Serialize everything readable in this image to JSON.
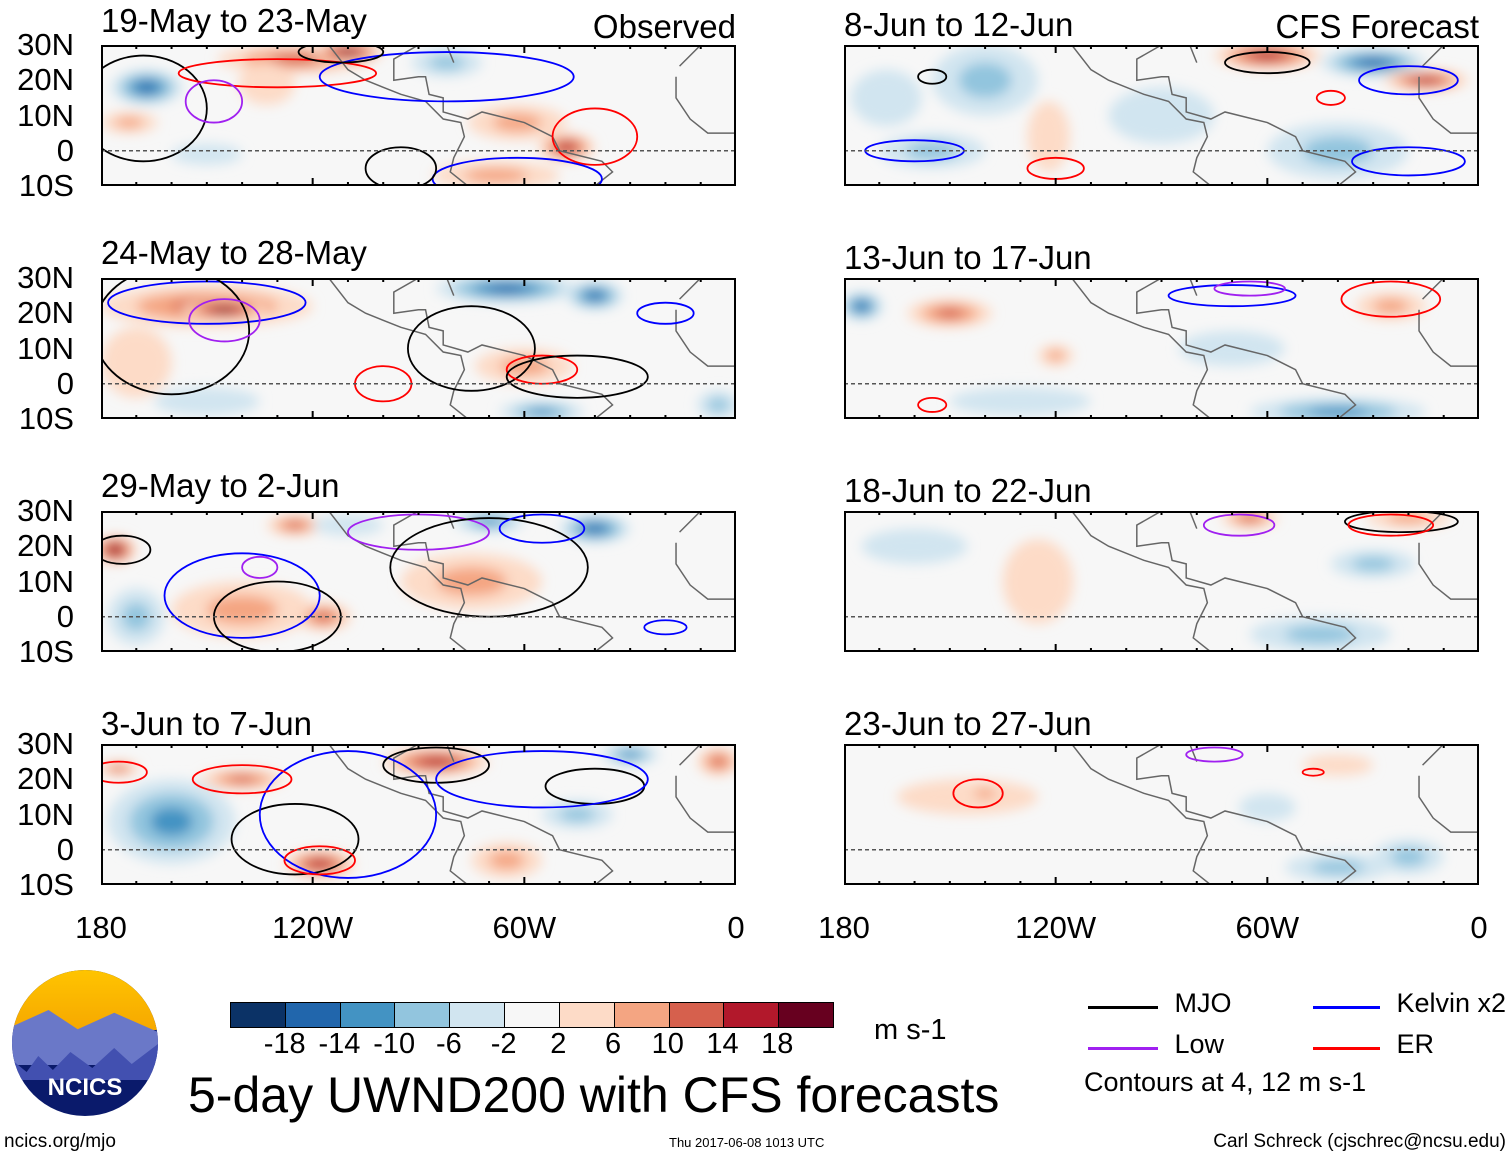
{
  "title": "5-day UWND200 with CFS forecasts",
  "column_labels": {
    "observed": "Observed",
    "forecast": "CFS Forecast"
  },
  "lat_labels": [
    "30N",
    "20N",
    "10N",
    "0",
    "10S"
  ],
  "lon_labels": [
    "180",
    "120W",
    "60W",
    "0"
  ],
  "colorbar": {
    "unit": "m s-1",
    "colors": [
      "#0b3266",
      "#2166ac",
      "#4393c3",
      "#92c5de",
      "#d1e5f0",
      "#f7f7f7",
      "#fddbc7",
      "#f4a582",
      "#d6604d",
      "#b2182b",
      "#67001f"
    ],
    "labels": [
      "-18",
      "-14",
      "-10",
      "-6",
      "-2",
      "2",
      "6",
      "10",
      "14",
      "18"
    ]
  },
  "legend": {
    "items": [
      {
        "label": "MJO",
        "color": "#000000"
      },
      {
        "label": "Kelvin x2",
        "color": "#0000ff"
      },
      {
        "label": "Low",
        "color": "#a020f0"
      },
      {
        "label": "ER",
        "color": "#ff0000"
      }
    ],
    "contours_note": "Contours at 4, 12 m s-1"
  },
  "footer": {
    "url": "ncics.org/mjo",
    "timestamp": "Thu 2017-06-08 1013 UTC",
    "author": "Carl Schreck (cjschrec@ncsu.edu)",
    "logo_text": "NCICS"
  },
  "panels": [
    {
      "title": "19-May to 23-May",
      "type": "observed",
      "anomalies": [
        [
          -167,
          18,
          10,
          5,
          -14
        ],
        [
          -125,
          26,
          22,
          4,
          10
        ],
        [
          -110,
          28,
          10,
          3,
          18
        ],
        [
          -172,
          8,
          8,
          3,
          8
        ],
        [
          -62,
          8,
          14,
          5,
          6
        ],
        [
          -48,
          1,
          8,
          4,
          14
        ],
        [
          -68,
          -7,
          18,
          4,
          8
        ],
        [
          -82,
          25,
          10,
          4,
          -6
        ],
        [
          -150,
          -1,
          10,
          3,
          -4
        ],
        [
          -133,
          19,
          8,
          6,
          4
        ]
      ],
      "contours": [
        [
          -168,
          12,
          18,
          15,
          "MJO"
        ],
        [
          -130,
          22,
          28,
          4,
          "ER"
        ],
        [
          -148,
          14,
          8,
          6,
          "Low"
        ],
        [
          -82,
          21,
          36,
          7,
          "Kelvin"
        ],
        [
          -40,
          4,
          12,
          8,
          "ER"
        ],
        [
          -62,
          -8,
          24,
          6,
          "Kelvin"
        ],
        [
          -95,
          -5,
          10,
          6,
          "MJO"
        ],
        [
          -112,
          28,
          12,
          3,
          "MJO"
        ]
      ]
    },
    {
      "title": "24-May to 28-May",
      "type": "observed",
      "anomalies": [
        [
          -150,
          22,
          30,
          6,
          12
        ],
        [
          -145,
          21,
          12,
          3,
          18
        ],
        [
          -65,
          27,
          20,
          4,
          -14
        ],
        [
          -40,
          25,
          8,
          4,
          -14
        ],
        [
          -60,
          5,
          14,
          5,
          6
        ],
        [
          -170,
          6,
          10,
          10,
          4
        ],
        [
          -55,
          -8,
          12,
          3,
          -10
        ],
        [
          -150,
          -5,
          15,
          4,
          -4
        ],
        [
          -5,
          -6,
          6,
          4,
          -6
        ]
      ],
      "contours": [
        [
          -150,
          23,
          28,
          6,
          "Kelvin"
        ],
        [
          -160,
          15,
          22,
          18,
          "MJO"
        ],
        [
          -145,
          18,
          10,
          6,
          "Low"
        ],
        [
          -75,
          10,
          18,
          12,
          "MJO"
        ],
        [
          -55,
          4,
          10,
          4,
          "ER"
        ],
        [
          -45,
          2,
          20,
          6,
          "MJO"
        ],
        [
          -20,
          20,
          8,
          3,
          "Kelvin"
        ],
        [
          -100,
          0,
          8,
          5,
          "ER"
        ]
      ]
    },
    {
      "title": "29-May to 2-Jun",
      "type": "observed",
      "anomalies": [
        [
          -176,
          19,
          6,
          4,
          18
        ],
        [
          -140,
          2,
          20,
          8,
          8
        ],
        [
          -125,
          26,
          8,
          3,
          10
        ],
        [
          -70,
          27,
          10,
          3,
          -10
        ],
        [
          -40,
          25,
          10,
          4,
          -14
        ],
        [
          -75,
          10,
          20,
          8,
          6
        ],
        [
          -170,
          0,
          8,
          8,
          -6
        ],
        [
          -117,
          0,
          8,
          4,
          10
        ],
        [
          -110,
          26,
          10,
          3,
          -4
        ]
      ],
      "contours": [
        [
          -174,
          19,
          8,
          4,
          "MJO"
        ],
        [
          -140,
          6,
          22,
          12,
          "Kelvin"
        ],
        [
          -130,
          0,
          18,
          10,
          "MJO"
        ],
        [
          -90,
          24,
          20,
          5,
          "Low"
        ],
        [
          -70,
          14,
          28,
          14,
          "MJO"
        ],
        [
          -135,
          14,
          5,
          3,
          "Low"
        ],
        [
          -20,
          -3,
          6,
          2,
          "Kelvin"
        ],
        [
          -55,
          25,
          12,
          4,
          "Kelvin"
        ]
      ]
    },
    {
      "title": "3-Jun to 7-Jun",
      "type": "observed",
      "anomalies": [
        [
          -160,
          8,
          18,
          12,
          -10
        ],
        [
          -118,
          -4,
          10,
          4,
          14
        ],
        [
          -85,
          25,
          15,
          4,
          14
        ],
        [
          -140,
          20,
          12,
          3,
          10
        ],
        [
          -30,
          27,
          8,
          3,
          -10
        ],
        [
          -175,
          23,
          6,
          2,
          10
        ],
        [
          -65,
          -3,
          10,
          5,
          6
        ],
        [
          -45,
          10,
          10,
          4,
          -6
        ],
        [
          -5,
          25,
          6,
          4,
          10
        ]
      ],
      "contours": [
        [
          -125,
          3,
          18,
          10,
          "MJO"
        ],
        [
          -110,
          10,
          25,
          18,
          "Kelvin"
        ],
        [
          -140,
          20,
          14,
          4,
          "ER"
        ],
        [
          -85,
          24,
          15,
          5,
          "MJO"
        ],
        [
          -40,
          18,
          14,
          5,
          "MJO"
        ],
        [
          -55,
          20,
          30,
          8,
          "Kelvin"
        ],
        [
          -118,
          -3,
          10,
          4,
          "ER"
        ],
        [
          -175,
          22,
          8,
          3,
          "ER"
        ]
      ]
    },
    {
      "title": "8-Jun to 12-Jun",
      "type": "forecast",
      "anomalies": [
        [
          -60,
          27,
          15,
          4,
          14
        ],
        [
          -30,
          25,
          15,
          4,
          -14
        ],
        [
          -15,
          20,
          12,
          3,
          14
        ],
        [
          -140,
          20,
          15,
          10,
          -6
        ],
        [
          -155,
          0,
          15,
          5,
          -6
        ],
        [
          -122,
          4,
          6,
          10,
          4
        ],
        [
          -40,
          0,
          20,
          8,
          -6
        ],
        [
          -90,
          10,
          15,
          8,
          -2
        ],
        [
          -168,
          15,
          10,
          8,
          -2
        ]
      ],
      "contours": [
        [
          -60,
          25,
          12,
          3,
          "MJO"
        ],
        [
          -20,
          20,
          14,
          4,
          "Kelvin"
        ],
        [
          -160,
          0,
          14,
          3,
          "Kelvin"
        ],
        [
          -120,
          -5,
          8,
          3,
          "ER"
        ],
        [
          -20,
          -3,
          16,
          4,
          "Kelvin"
        ],
        [
          -155,
          21,
          4,
          2,
          "MJO"
        ],
        [
          -42,
          15,
          4,
          2,
          "ER"
        ]
      ]
    },
    {
      "title": "13-Jun to 17-Jun",
      "type": "forecast",
      "anomalies": [
        [
          -175,
          22,
          6,
          4,
          -14
        ],
        [
          -150,
          20,
          12,
          4,
          10
        ],
        [
          -25,
          22,
          10,
          4,
          6
        ],
        [
          -40,
          -8,
          25,
          4,
          -10
        ],
        [
          -130,
          -5,
          20,
          4,
          -4
        ],
        [
          -70,
          10,
          15,
          5,
          -4
        ],
        [
          -120,
          8,
          5,
          3,
          6
        ]
      ],
      "contours": [
        [
          -25,
          24,
          14,
          5,
          "ER"
        ],
        [
          -70,
          25,
          18,
          3,
          "Kelvin"
        ],
        [
          -155,
          -6,
          4,
          2,
          "ER"
        ],
        [
          -65,
          27,
          10,
          2,
          "Low"
        ]
      ]
    },
    {
      "title": "18-Jun to 22-Jun",
      "type": "forecast",
      "anomalies": [
        [
          -65,
          28,
          8,
          3,
          10
        ],
        [
          -20,
          28,
          12,
          3,
          6
        ],
        [
          -160,
          20,
          15,
          5,
          -4
        ],
        [
          -125,
          10,
          10,
          12,
          2
        ],
        [
          -45,
          -5,
          20,
          5,
          -6
        ],
        [
          -30,
          15,
          12,
          4,
          -6
        ]
      ],
      "contours": [
        [
          -68,
          26,
          10,
          3,
          "Low"
        ],
        [
          -22,
          27,
          16,
          3,
          "MJO"
        ],
        [
          -25,
          26,
          12,
          3,
          "ER"
        ]
      ]
    },
    {
      "title": "23-Jun to 27-Jun",
      "type": "forecast",
      "anomalies": [
        [
          -145,
          15,
          20,
          5,
          4
        ],
        [
          -40,
          -5,
          15,
          4,
          -6
        ],
        [
          -20,
          -2,
          10,
          5,
          -6
        ],
        [
          -60,
          12,
          8,
          4,
          -4
        ],
        [
          -40,
          24,
          10,
          3,
          2
        ],
        [
          -140,
          16,
          6,
          3,
          8
        ]
      ],
      "contours": [
        [
          -142,
          16,
          7,
          4,
          "ER"
        ],
        [
          -75,
          27,
          8,
          2,
          "Low"
        ],
        [
          -47,
          22,
          3,
          1,
          "ER"
        ]
      ]
    }
  ]
}
